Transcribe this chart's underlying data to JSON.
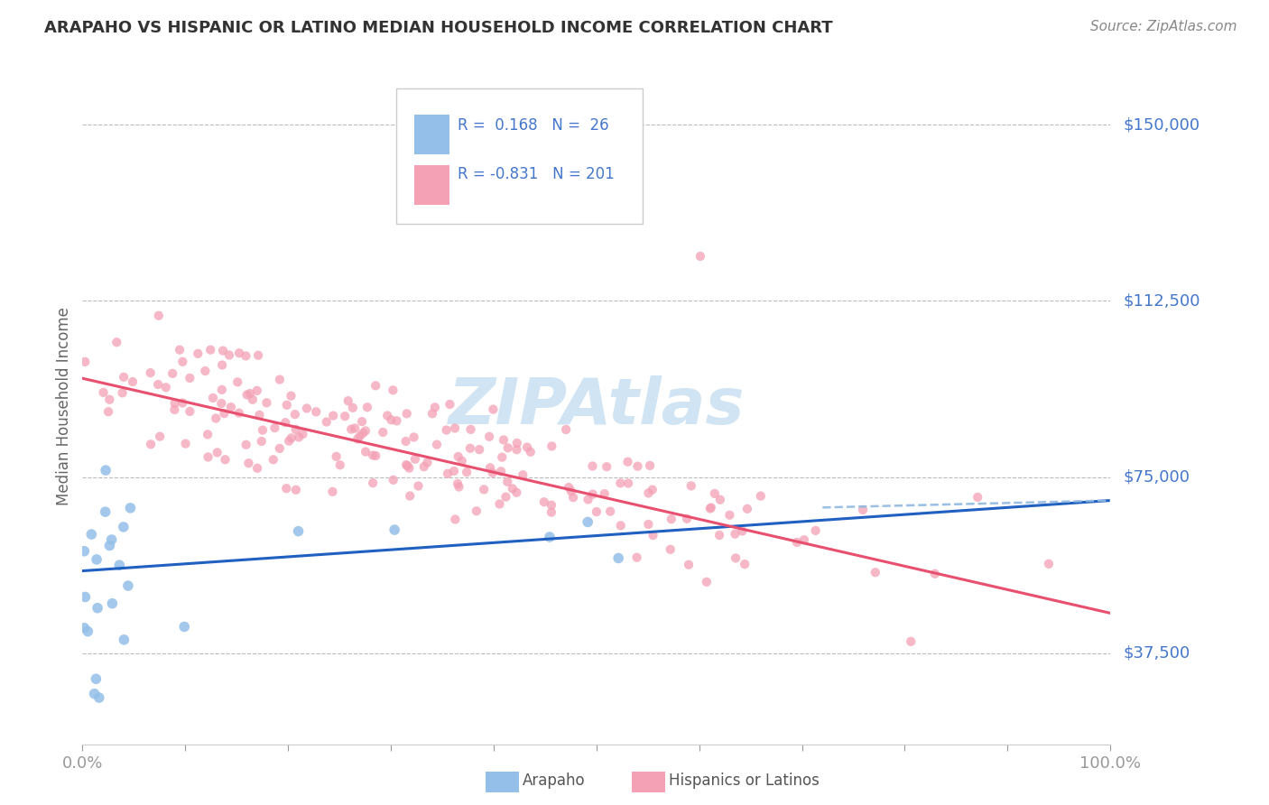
{
  "title": "ARAPAHO VS HISPANIC OR LATINO MEDIAN HOUSEHOLD INCOME CORRELATION CHART",
  "source": "Source: ZipAtlas.com",
  "ylabel": "Median Household Income",
  "ytick_labels": [
    "$37,500",
    "$75,000",
    "$112,500",
    "$150,000"
  ],
  "ytick_values": [
    37500,
    75000,
    112500,
    150000
  ],
  "ylim": [
    18000,
    162000
  ],
  "xlim": [
    0.0,
    1.0
  ],
  "arapaho_color": "#93BFE8",
  "hispanic_color": "#F4A0B5",
  "arapaho_line_color": "#2060C0",
  "hispanic_line_color": "#E85070",
  "dashed_line_color": "#90B8E0",
  "background_color": "#FFFFFF",
  "grid_color": "#BBBBBB",
  "label_color": "#4477CC",
  "title_color": "#333333",
  "source_color": "#888888",
  "watermark_text": "ZIPAtlas",
  "watermark_color": "#D0E4F4",
  "arapaho_R": 0.168,
  "arapaho_N": 26,
  "hispanic_R": -0.831,
  "hispanic_N": 201,
  "ara_line_x0": 0.0,
  "ara_line_y0": 55000,
  "ara_line_x1": 1.0,
  "ara_line_y1": 70000,
  "his_line_x0": 0.0,
  "his_line_y0": 96000,
  "his_line_x1": 1.0,
  "his_line_y1": 46000,
  "dash_line_x0": 0.72,
  "dash_line_y0": 68500,
  "dash_line_x1": 1.0,
  "dash_line_y1": 70000
}
